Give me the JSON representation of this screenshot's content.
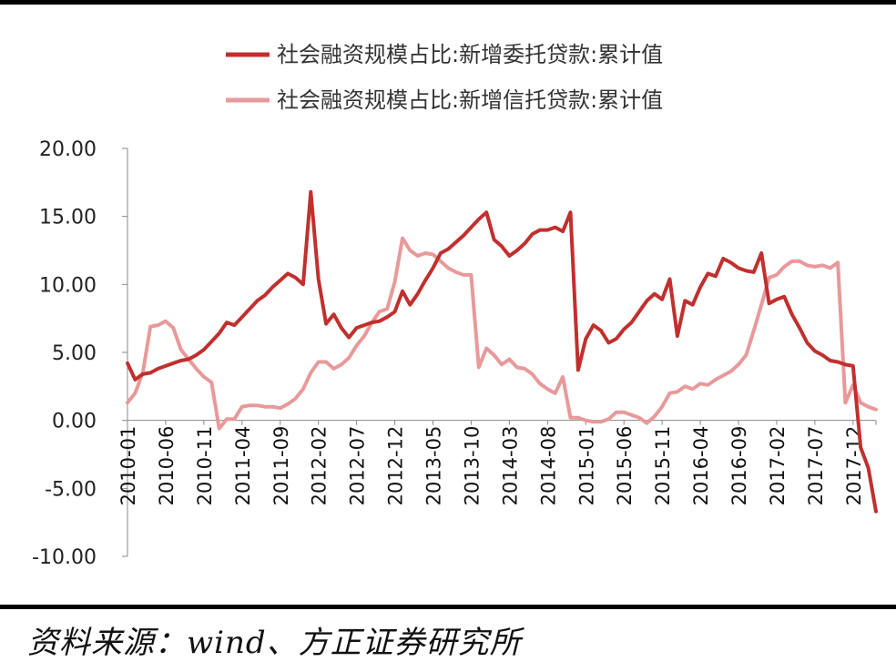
{
  "chart_data": {
    "type": "line",
    "ylim": [
      -10,
      20
    ],
    "yticks": [
      "20.00",
      "15.00",
      "10.00",
      "5.00",
      "0.00",
      "-5.00",
      "-10.00"
    ],
    "ytick_values": [
      20,
      15,
      10,
      5,
      0,
      -5,
      -10
    ],
    "xtick_labels": [
      "2010-01",
      "2010-06",
      "2010-11",
      "2011-04",
      "2011-09",
      "2012-02",
      "2012-07",
      "2012-12",
      "2013-05",
      "2013-10",
      "2014-03",
      "2014-08",
      "2015-01",
      "2015-06",
      "2015-11",
      "2016-04",
      "2016-09",
      "2017-02",
      "2017-07",
      "2017-12"
    ],
    "legend_position": "top",
    "x_start": "2010-01",
    "x_end": "2018-03",
    "series": [
      {
        "name": "社会融资规模占比:新增委托贷款:累计值",
        "color": "#c0302e",
        "points": [
          [
            "2010-01",
            4.2
          ],
          [
            "2010-02",
            3.0
          ],
          [
            "2010-03",
            3.4
          ],
          [
            "2010-04",
            3.5
          ],
          [
            "2010-05",
            3.8
          ],
          [
            "2010-06",
            4.0
          ],
          [
            "2010-07",
            4.2
          ],
          [
            "2010-08",
            4.4
          ],
          [
            "2010-09",
            4.5
          ],
          [
            "2010-10",
            4.8
          ],
          [
            "2010-11",
            5.2
          ],
          [
            "2010-12",
            5.8
          ],
          [
            "2011-01",
            6.4
          ],
          [
            "2011-02",
            7.2
          ],
          [
            "2011-03",
            7.0
          ],
          [
            "2011-04",
            7.6
          ],
          [
            "2011-05",
            8.2
          ],
          [
            "2011-06",
            8.8
          ],
          [
            "2011-07",
            9.2
          ],
          [
            "2011-08",
            9.8
          ],
          [
            "2011-09",
            10.3
          ],
          [
            "2011-10",
            10.8
          ],
          [
            "2011-11",
            10.5
          ],
          [
            "2011-12",
            10.0
          ],
          [
            "2012-01",
            16.8
          ],
          [
            "2012-02",
            10.4
          ],
          [
            "2012-03",
            7.1
          ],
          [
            "2012-04",
            7.8
          ],
          [
            "2012-05",
            6.8
          ],
          [
            "2012-06",
            6.1
          ],
          [
            "2012-07",
            6.8
          ],
          [
            "2012-08",
            7.0
          ],
          [
            "2012-09",
            7.2
          ],
          [
            "2012-10",
            7.3
          ],
          [
            "2012-11",
            7.6
          ],
          [
            "2012-12",
            8.0
          ],
          [
            "2013-01",
            9.5
          ],
          [
            "2013-02",
            8.5
          ],
          [
            "2013-03",
            9.3
          ],
          [
            "2013-04",
            10.3
          ],
          [
            "2013-05",
            11.2
          ],
          [
            "2013-06",
            12.3
          ],
          [
            "2013-07",
            12.6
          ],
          [
            "2013-08",
            13.1
          ],
          [
            "2013-09",
            13.6
          ],
          [
            "2013-10",
            14.2
          ],
          [
            "2013-11",
            14.8
          ],
          [
            "2013-12",
            15.3
          ],
          [
            "2014-01",
            13.3
          ],
          [
            "2014-02",
            12.8
          ],
          [
            "2014-03",
            12.1
          ],
          [
            "2014-04",
            12.5
          ],
          [
            "2014-05",
            13.0
          ],
          [
            "2014-06",
            13.7
          ],
          [
            "2014-07",
            14.0
          ],
          [
            "2014-08",
            14.0
          ],
          [
            "2014-09",
            14.2
          ],
          [
            "2014-10",
            13.9
          ],
          [
            "2014-11",
            15.3
          ],
          [
            "2014-12",
            3.7
          ],
          [
            "2015-01",
            6.0
          ],
          [
            "2015-02",
            7.0
          ],
          [
            "2015-03",
            6.6
          ],
          [
            "2015-04",
            5.7
          ],
          [
            "2015-05",
            6.0
          ],
          [
            "2015-06",
            6.7
          ],
          [
            "2015-07",
            7.2
          ],
          [
            "2015-08",
            8.0
          ],
          [
            "2015-09",
            8.8
          ],
          [
            "2015-10",
            9.3
          ],
          [
            "2015-11",
            8.9
          ],
          [
            "2015-12",
            10.4
          ],
          [
            "2016-01",
            6.2
          ],
          [
            "2016-02",
            8.8
          ],
          [
            "2016-03",
            8.5
          ],
          [
            "2016-04",
            9.8
          ],
          [
            "2016-05",
            10.8
          ],
          [
            "2016-06",
            10.6
          ],
          [
            "2016-07",
            11.9
          ],
          [
            "2016-08",
            11.6
          ],
          [
            "2016-09",
            11.2
          ],
          [
            "2016-10",
            11.0
          ],
          [
            "2016-11",
            10.9
          ],
          [
            "2016-12",
            12.3
          ],
          [
            "2017-01",
            8.6
          ],
          [
            "2017-02",
            8.9
          ],
          [
            "2017-03",
            9.1
          ],
          [
            "2017-04",
            7.8
          ],
          [
            "2017-05",
            6.8
          ],
          [
            "2017-06",
            5.7
          ],
          [
            "2017-07",
            5.1
          ],
          [
            "2017-08",
            4.8
          ],
          [
            "2017-09",
            4.4
          ],
          [
            "2017-10",
            4.3
          ],
          [
            "2017-11",
            4.1
          ],
          [
            "2017-12",
            4.0
          ],
          [
            "2018-01",
            -2.0
          ],
          [
            "2018-02",
            -3.5
          ],
          [
            "2018-03",
            -6.7
          ]
        ]
      },
      {
        "name": "社会融资规模占比:新增信托贷款:累计值",
        "color": "#e8999a",
        "points": [
          [
            "2010-01",
            1.3
          ],
          [
            "2010-02",
            2.0
          ],
          [
            "2010-03",
            3.5
          ],
          [
            "2010-04",
            6.9
          ],
          [
            "2010-05",
            7.0
          ],
          [
            "2010-06",
            7.3
          ],
          [
            "2010-07",
            6.8
          ],
          [
            "2010-08",
            5.2
          ],
          [
            "2010-09",
            4.5
          ],
          [
            "2010-10",
            3.8
          ],
          [
            "2010-11",
            3.2
          ],
          [
            "2010-12",
            2.8
          ],
          [
            "2011-01",
            -0.6
          ],
          [
            "2011-02",
            0.1
          ],
          [
            "2011-03",
            0.1
          ],
          [
            "2011-04",
            1.0
          ],
          [
            "2011-05",
            1.1
          ],
          [
            "2011-06",
            1.1
          ],
          [
            "2011-07",
            1.0
          ],
          [
            "2011-08",
            1.0
          ],
          [
            "2011-09",
            0.9
          ],
          [
            "2011-10",
            1.2
          ],
          [
            "2011-11",
            1.6
          ],
          [
            "2011-12",
            2.3
          ],
          [
            "2012-01",
            3.5
          ],
          [
            "2012-02",
            4.3
          ],
          [
            "2012-03",
            4.3
          ],
          [
            "2012-04",
            3.8
          ],
          [
            "2012-05",
            4.1
          ],
          [
            "2012-06",
            4.6
          ],
          [
            "2012-07",
            5.5
          ],
          [
            "2012-08",
            6.2
          ],
          [
            "2012-09",
            7.2
          ],
          [
            "2012-10",
            8.0
          ],
          [
            "2012-11",
            8.2
          ],
          [
            "2012-12",
            10.2
          ],
          [
            "2013-01",
            13.4
          ],
          [
            "2013-02",
            12.5
          ],
          [
            "2013-03",
            12.1
          ],
          [
            "2013-04",
            12.3
          ],
          [
            "2013-05",
            12.2
          ],
          [
            "2013-06",
            11.7
          ],
          [
            "2013-07",
            11.2
          ],
          [
            "2013-08",
            10.9
          ],
          [
            "2013-09",
            10.7
          ],
          [
            "2013-10",
            10.7
          ],
          [
            "2013-11",
            3.9
          ],
          [
            "2013-12",
            5.3
          ],
          [
            "2014-01",
            4.8
          ],
          [
            "2014-02",
            4.1
          ],
          [
            "2014-03",
            4.5
          ],
          [
            "2014-04",
            3.9
          ],
          [
            "2014-05",
            3.8
          ],
          [
            "2014-06",
            3.4
          ],
          [
            "2014-07",
            2.7
          ],
          [
            "2014-08",
            2.3
          ],
          [
            "2014-09",
            2.0
          ],
          [
            "2014-10",
            3.2
          ],
          [
            "2014-11",
            0.2
          ],
          [
            "2014-12",
            0.2
          ],
          [
            "2015-01",
            0.0
          ],
          [
            "2015-02",
            -0.1
          ],
          [
            "2015-03",
            -0.1
          ],
          [
            "2015-04",
            0.1
          ],
          [
            "2015-05",
            0.6
          ],
          [
            "2015-06",
            0.6
          ],
          [
            "2015-07",
            0.4
          ],
          [
            "2015-08",
            0.2
          ],
          [
            "2015-09",
            -0.2
          ],
          [
            "2015-10",
            0.3
          ],
          [
            "2015-11",
            1.0
          ],
          [
            "2015-12",
            2.0
          ],
          [
            "2016-01",
            2.1
          ],
          [
            "2016-02",
            2.5
          ],
          [
            "2016-03",
            2.3
          ],
          [
            "2016-04",
            2.7
          ],
          [
            "2016-05",
            2.6
          ],
          [
            "2016-06",
            3.0
          ],
          [
            "2016-07",
            3.3
          ],
          [
            "2016-08",
            3.6
          ],
          [
            "2016-09",
            4.1
          ],
          [
            "2016-10",
            4.8
          ],
          [
            "2016-11",
            6.6
          ],
          [
            "2016-12",
            8.5
          ],
          [
            "2017-01",
            10.5
          ],
          [
            "2017-02",
            10.7
          ],
          [
            "2017-03",
            11.3
          ],
          [
            "2017-04",
            11.7
          ],
          [
            "2017-05",
            11.7
          ],
          [
            "2017-06",
            11.4
          ],
          [
            "2017-07",
            11.3
          ],
          [
            "2017-08",
            11.4
          ],
          [
            "2017-09",
            11.2
          ],
          [
            "2017-10",
            11.6
          ],
          [
            "2017-11",
            1.3
          ],
          [
            "2017-12",
            2.6
          ],
          [
            "2018-01",
            1.3
          ],
          [
            "2018-02",
            1.0
          ],
          [
            "2018-03",
            0.8
          ]
        ]
      }
    ]
  },
  "source_text": "资料来源：wind、方正证券研究所"
}
